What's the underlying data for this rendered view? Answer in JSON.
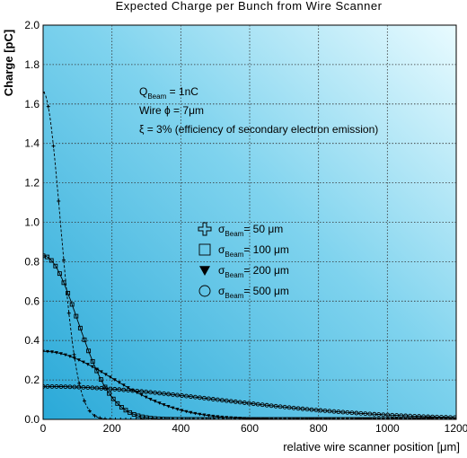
{
  "chart_data": {
    "type": "line",
    "title": "Expected Charge per Bunch from Wire Scanner",
    "xlabel": "relative wire scanner position [μm]",
    "ylabel": "Charge [pC]",
    "xlim": [
      0,
      1200
    ],
    "ylim": [
      0,
      2.0
    ],
    "xticks": [
      "0",
      "200",
      "400",
      "600",
      "800",
      "1000",
      "1200"
    ],
    "yticks": [
      "0.0",
      "0.2",
      "0.4",
      "0.6",
      "0.8",
      "1.0",
      "1.2",
      "1.4",
      "1.6",
      "1.8",
      "2.0"
    ],
    "grid": true,
    "annotations": {
      "q_prefix": "Q",
      "q_sub": "Beam",
      "q_value": " = 1nC",
      "wire": "Wire  ϕ = 7μm",
      "xi": "ξ = 3% (efficiency of secondary electron emission)"
    },
    "legend_position": "center",
    "series": [
      {
        "name": "50 μm",
        "sigma": 50,
        "peak": 1.66,
        "marker": "plus",
        "dashed": true
      },
      {
        "name": "100 μm",
        "sigma": 100,
        "peak": 0.83,
        "marker": "square",
        "dashed": false
      },
      {
        "name": "200 μm",
        "sigma": 200,
        "peak": 0.345,
        "marker": "triangle",
        "dashed": false
      },
      {
        "name": "500 μm",
        "sigma": 500,
        "peak": 0.167,
        "marker": "circle",
        "dashed": false
      }
    ],
    "legend": {
      "sigma_symbol": "σ",
      "sigma_sub": "Beam",
      "equals": "= "
    }
  }
}
